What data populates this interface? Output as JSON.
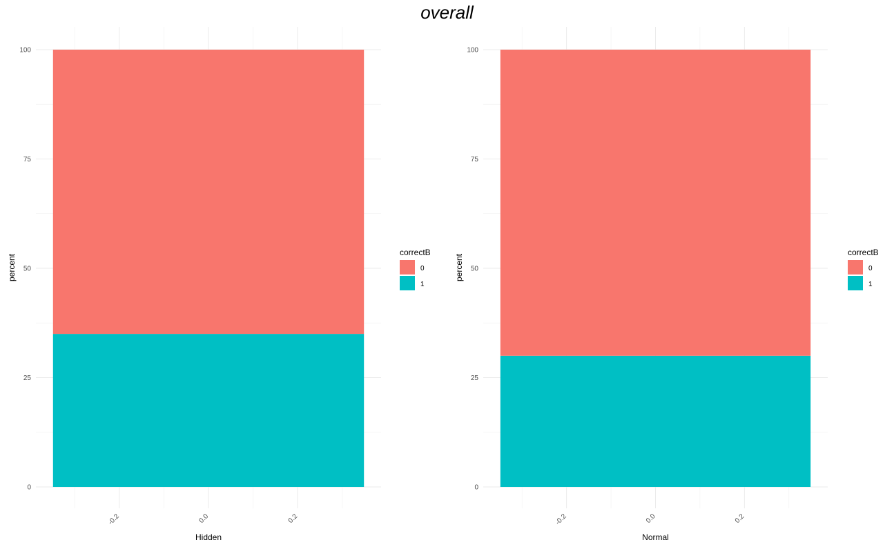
{
  "title": "overall",
  "chart_data": [
    {
      "type": "bar",
      "stacked": true,
      "xlabel": "Hidden",
      "ylabel": "percent",
      "ylim": [
        0,
        100
      ],
      "yticks": [
        0,
        25,
        50,
        75,
        100
      ],
      "xlim": [
        -0.35,
        0.35
      ],
      "xticks": [
        -0.2,
        0.0,
        0.2
      ],
      "xtick_labels": [
        "-0.2",
        "0.0",
        "0.2"
      ],
      "grid": true,
      "legend": {
        "title": "correctB",
        "position": "right"
      },
      "series": [
        {
          "name": "1",
          "value": 35,
          "color": "#00BFC4"
        },
        {
          "name": "0",
          "value": 65,
          "color": "#F8766D"
        }
      ]
    },
    {
      "type": "bar",
      "stacked": true,
      "xlabel": "Normal",
      "ylabel": "percent",
      "ylim": [
        0,
        100
      ],
      "yticks": [
        0,
        25,
        50,
        75,
        100
      ],
      "xlim": [
        -0.35,
        0.35
      ],
      "xticks": [
        -0.2,
        0.0,
        0.2
      ],
      "xtick_labels": [
        "-0.2",
        "0.0",
        "0.2"
      ],
      "grid": true,
      "legend": {
        "title": "correctB",
        "position": "right"
      },
      "series": [
        {
          "name": "1",
          "value": 30,
          "color": "#00BFC4"
        },
        {
          "name": "0",
          "value": 70,
          "color": "#F8766D"
        }
      ]
    }
  ]
}
